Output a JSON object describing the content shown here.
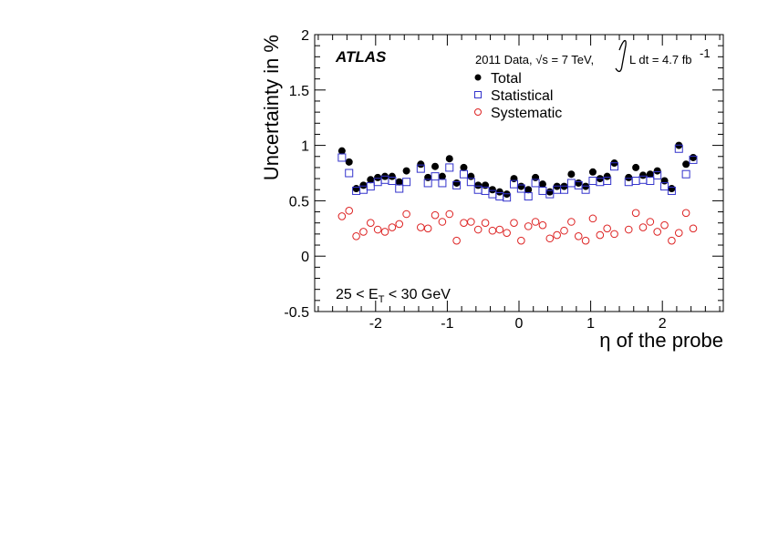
{
  "chart_data": {
    "type": "scatter",
    "xlabel": "η of the probe",
    "ylabel": "Uncertainty in %",
    "xlim": [
      -2.85,
      2.85
    ],
    "ylim": [
      -0.5,
      2
    ],
    "x_ticks": [
      -2,
      -1,
      0,
      1,
      2
    ],
    "x_tick_labels": [
      "-2",
      "-1",
      "0",
      "1",
      "2"
    ],
    "y_ticks": [
      -0.5,
      0,
      0.5,
      1,
      1.5,
      2
    ],
    "y_tick_labels": [
      "-0.5",
      "0",
      "0.5",
      "1",
      "1.5",
      "2"
    ],
    "experiment": "ATLAS",
    "dataset_text": "2011 Data, √s = 7 TeV,",
    "lumi_text": "L dt = 4.7 fb",
    "lumi_exp": "-1",
    "cut_label": "25 < E",
    "cut_sub": "T",
    "cut_tail": " < 30 GeV",
    "x": [
      -2.47,
      -2.37,
      -2.27,
      -2.17,
      -2.07,
      -1.97,
      -1.87,
      -1.77,
      -1.67,
      -1.57,
      -1.37,
      -1.27,
      -1.17,
      -1.07,
      -0.97,
      -0.87,
      -0.77,
      -0.67,
      -0.57,
      -0.47,
      -0.37,
      -0.27,
      -0.17,
      -0.07,
      0.03,
      0.13,
      0.23,
      0.33,
      0.43,
      0.53,
      0.63,
      0.73,
      0.83,
      0.93,
      1.03,
      1.13,
      1.23,
      1.33,
      1.53,
      1.63,
      1.73,
      1.83,
      1.93,
      2.03,
      2.13,
      2.23,
      2.33,
      2.43
    ],
    "series": [
      {
        "name": "Total",
        "marker": "filled-circle",
        "color": "#000000",
        "values": [
          0.95,
          0.85,
          0.61,
          0.64,
          0.69,
          0.71,
          0.72,
          0.72,
          0.67,
          0.77,
          0.83,
          0.71,
          0.81,
          0.72,
          0.88,
          0.66,
          0.8,
          0.72,
          0.64,
          0.64,
          0.6,
          0.58,
          0.56,
          0.7,
          0.63,
          0.6,
          0.71,
          0.65,
          0.58,
          0.63,
          0.63,
          0.74,
          0.66,
          0.63,
          0.76,
          0.7,
          0.72,
          0.84,
          0.71,
          0.8,
          0.73,
          0.74,
          0.77,
          0.68,
          0.61,
          1.0,
          0.83,
          0.89
        ]
      },
      {
        "name": "Statistical",
        "marker": "open-square",
        "color": "#3333cc",
        "values": [
          0.89,
          0.75,
          0.59,
          0.6,
          0.63,
          0.67,
          0.69,
          0.68,
          0.61,
          0.67,
          0.79,
          0.66,
          0.72,
          0.66,
          0.8,
          0.64,
          0.74,
          0.67,
          0.6,
          0.59,
          0.56,
          0.54,
          0.53,
          0.65,
          0.61,
          0.54,
          0.66,
          0.59,
          0.56,
          0.6,
          0.6,
          0.66,
          0.64,
          0.6,
          0.68,
          0.67,
          0.68,
          0.81,
          0.67,
          0.68,
          0.69,
          0.68,
          0.73,
          0.63,
          0.59,
          0.97,
          0.74,
          0.87
        ]
      },
      {
        "name": "Systematic",
        "marker": "open-circle",
        "color": "#dd2222",
        "values": [
          0.36,
          0.41,
          0.18,
          0.22,
          0.3,
          0.24,
          0.22,
          0.26,
          0.29,
          0.38,
          0.26,
          0.25,
          0.37,
          0.31,
          0.38,
          0.14,
          0.3,
          0.31,
          0.24,
          0.3,
          0.23,
          0.24,
          0.21,
          0.3,
          0.14,
          0.27,
          0.31,
          0.28,
          0.16,
          0.19,
          0.23,
          0.31,
          0.18,
          0.14,
          0.34,
          0.19,
          0.25,
          0.2,
          0.24,
          0.39,
          0.26,
          0.31,
          0.22,
          0.28,
          0.14,
          0.21,
          0.39,
          0.25
        ]
      }
    ]
  }
}
